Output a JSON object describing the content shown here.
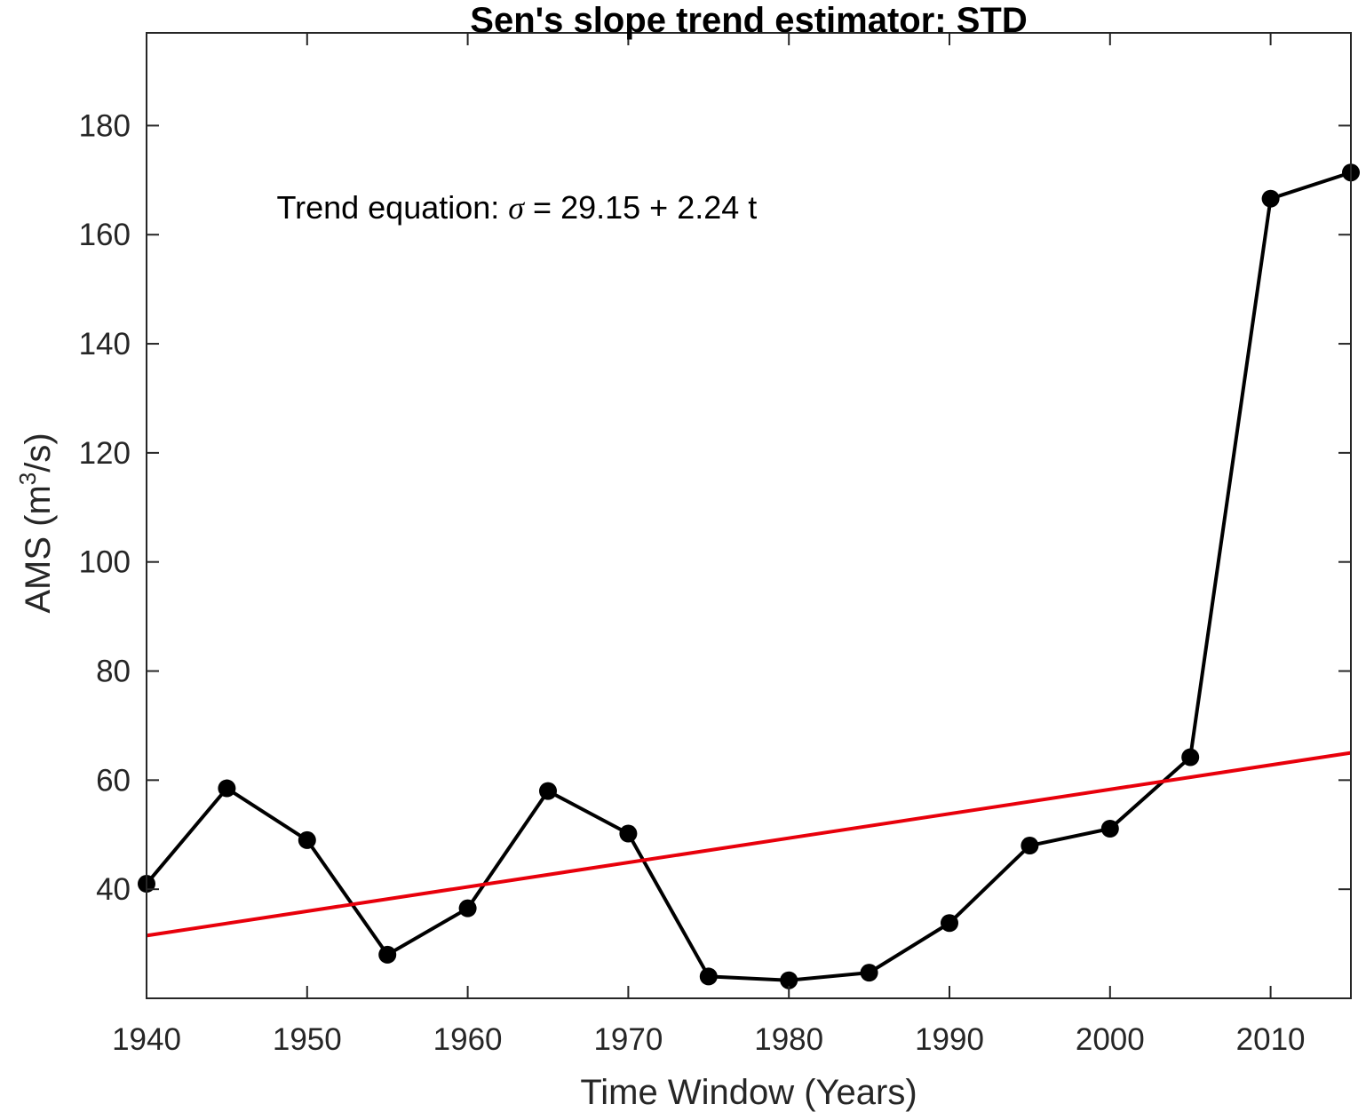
{
  "chart_data": {
    "type": "line",
    "title": "Sen's slope trend estimator: STD",
    "xlabel": "Time Window (Years)",
    "ylabel": {
      "prefix": "AMS (m",
      "superscript": "3",
      "suffix": "/s)"
    },
    "xlim": [
      1940,
      2015
    ],
    "ylim": [
      20,
      197
    ],
    "xticks": [
      1940,
      1950,
      1960,
      1970,
      1980,
      1990,
      2000,
      2010
    ],
    "yticks": [
      40,
      60,
      80,
      100,
      120,
      140,
      160,
      180
    ],
    "grid": false,
    "series": [
      {
        "color": "#000000",
        "marker": "circle",
        "x": [
          1940,
          1945,
          1950,
          1955,
          1960,
          1965,
          1970,
          1975,
          1980,
          1985,
          1990,
          1995,
          2000,
          2005,
          2010,
          2015
        ],
        "y": [
          41,
          58.5,
          49,
          28,
          36.5,
          58,
          50.2,
          24,
          23.3,
          24.7,
          33.8,
          48,
          51.1,
          64.2,
          166.6,
          171.4
        ]
      },
      {
        "color": "#e8000b",
        "marker": "none",
        "x": [
          1940,
          2015
        ],
        "y": [
          31.5,
          65
        ]
      }
    ],
    "annotations": [
      {
        "prefix": "Trend equation: ",
        "symbol": "σ",
        "suffix": " = 29.15 + 2.24 t",
        "x": 1948.1,
        "y": 163
      }
    ]
  }
}
